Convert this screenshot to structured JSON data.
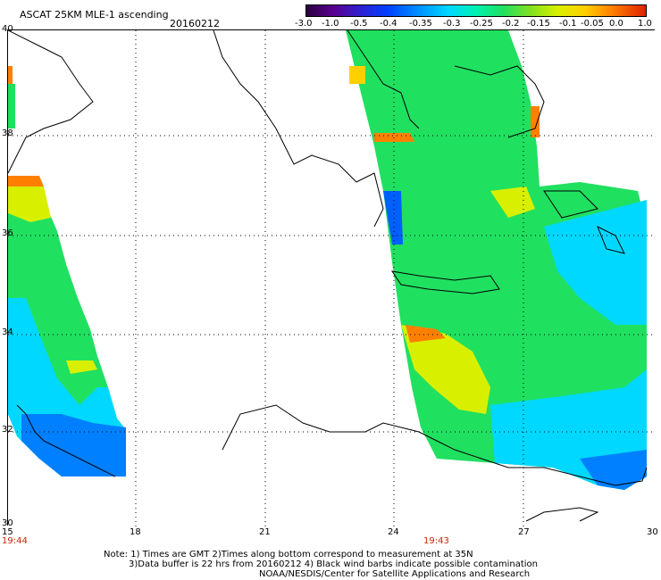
{
  "header": {
    "title": "ASCAT 25KM MLE-1 ascending",
    "date": "20160212"
  },
  "colorbar": {
    "labels": [
      "-3.0",
      "-1.0",
      "-0.5",
      "-0.4",
      "-0.35",
      "-0.3",
      "-0.25",
      "-0.2",
      "-0.15",
      "-0.1",
      "-0.05",
      "0.0",
      "1.0"
    ]
  },
  "axes": {
    "lat_labels": [
      "40",
      "38",
      "36",
      "34",
      "32",
      "30"
    ],
    "lon_labels": [
      "15",
      "18",
      "21",
      "24",
      "27",
      "30"
    ],
    "time_labels": [
      "19:44",
      "19:43"
    ]
  },
  "notes": {
    "line1": "Note: 1) Times are GMT 2)Times along bottom correspond to measurement at 35N",
    "line2": "3)Data buffer is 22 hrs from 20160212 4) Black wind barbs indicate possible contamination",
    "line3": "NOAA/NESDIS/Center for Satellite Applications and Research"
  }
}
